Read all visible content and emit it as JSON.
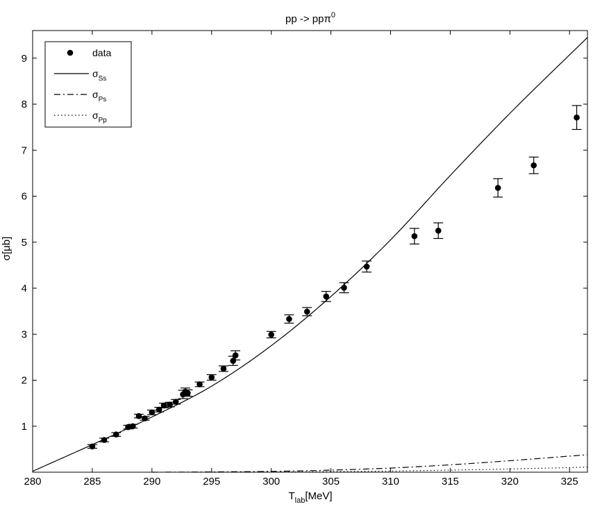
{
  "chart_data": {
    "type": "scatter",
    "title": "pp -> ppπ",
    "title_sup": "0",
    "xlabel": "T",
    "xlabel_sub": "lab",
    "xlabel_unit": "[MeV]",
    "ylabel": "σ[μb]",
    "xlim": [
      280,
      326.5
    ],
    "ylim": [
      0,
      9.6
    ],
    "xticks": [
      280,
      285,
      290,
      295,
      300,
      305,
      310,
      315,
      320,
      325
    ],
    "yticks": [
      1,
      2,
      3,
      4,
      5,
      6,
      7,
      8,
      9
    ],
    "grid": false,
    "legend_position": "top-left",
    "legend": [
      {
        "base": "data",
        "sub": "",
        "style": "marker"
      },
      {
        "base": "σ",
        "sub": "Ss",
        "style": "solid"
      },
      {
        "base": "σ",
        "sub": "Ps",
        "style": "dashdot"
      },
      {
        "base": "σ",
        "sub": "Pp",
        "style": "dotted"
      }
    ],
    "series": [
      {
        "name": "data",
        "kind": "points",
        "x": [
          285,
          286,
          287,
          288,
          288.4,
          288.9,
          289.4,
          290,
          290.6,
          291,
          291.5,
          292,
          292.6,
          292.8,
          293,
          294,
          295,
          296,
          296.8,
          297,
          300,
          301.5,
          303,
          304.6,
          306.1,
          308,
          312,
          314,
          319,
          322,
          325.6
        ],
        "y": [
          0.56,
          0.7,
          0.82,
          0.98,
          1.0,
          1.22,
          1.17,
          1.3,
          1.36,
          1.45,
          1.47,
          1.53,
          1.69,
          1.75,
          1.72,
          1.91,
          2.06,
          2.25,
          2.42,
          2.54,
          2.99,
          3.33,
          3.49,
          3.82,
          4.01,
          4.47,
          5.13,
          5.25,
          6.18,
          6.67,
          7.71
        ],
        "err": [
          0.04,
          0.04,
          0.04,
          0.04,
          0.04,
          0.04,
          0.04,
          0.05,
          0.05,
          0.05,
          0.05,
          0.05,
          0.09,
          0.08,
          0.07,
          0.05,
          0.06,
          0.06,
          0.1,
          0.1,
          0.07,
          0.09,
          0.09,
          0.11,
          0.11,
          0.12,
          0.17,
          0.17,
          0.2,
          0.18,
          0.26
        ]
      },
      {
        "name": "σSs",
        "kind": "curve",
        "style": "solid",
        "x": [
          280,
          285,
          290,
          295,
          300,
          305,
          310,
          315,
          320,
          326.5
        ],
        "y": [
          0.02,
          0.6,
          1.2,
          1.87,
          2.75,
          3.82,
          5.05,
          6.45,
          7.8,
          9.45
        ]
      },
      {
        "name": "σPs",
        "kind": "curve",
        "style": "dashdot",
        "x": [
          290,
          295,
          300,
          305,
          310,
          315,
          320,
          326.5
        ],
        "y": [
          0.0,
          0.006,
          0.018,
          0.045,
          0.09,
          0.16,
          0.25,
          0.38
        ]
      },
      {
        "name": "σPp",
        "kind": "curve",
        "style": "dotted",
        "x": [
          295,
          300,
          305,
          310,
          315,
          320,
          326.5
        ],
        "y": [
          0.0,
          0.004,
          0.012,
          0.025,
          0.045,
          0.07,
          0.11
        ]
      }
    ]
  }
}
